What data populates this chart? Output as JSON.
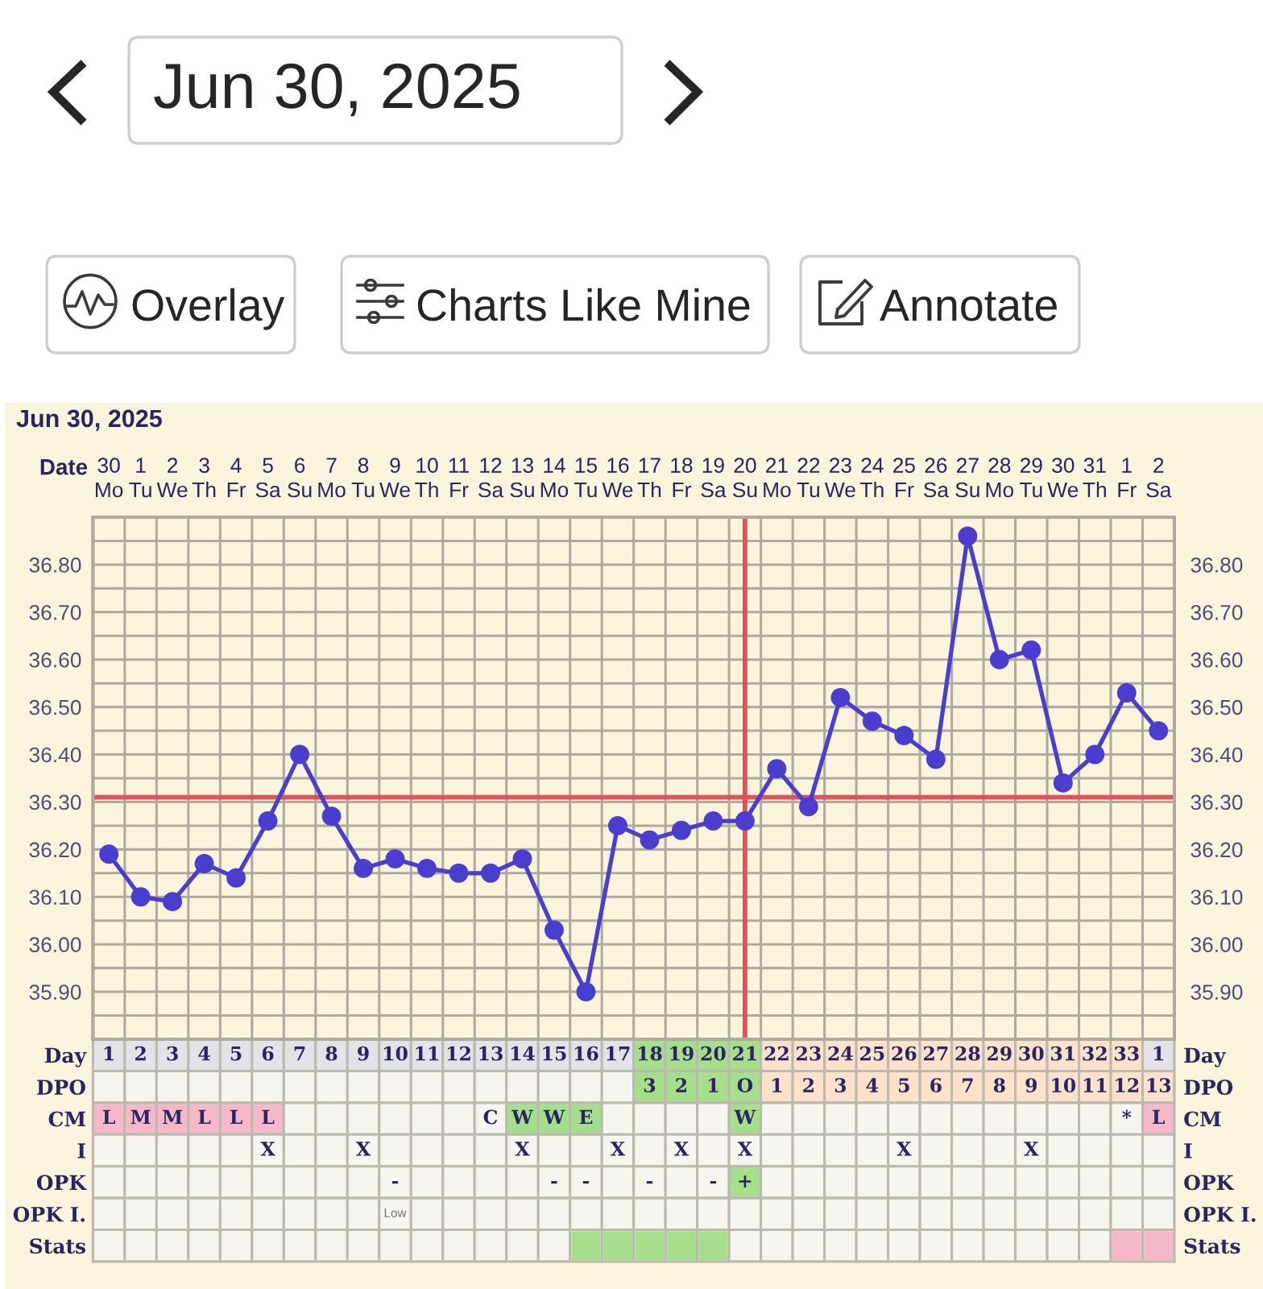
{
  "chart_data": [
    {
      "type": "line",
      "title": "Jun 30, 2025",
      "xlabel": "Date",
      "categories": [
        "30\nMo",
        "1\nTu",
        "2\nWe",
        "3\nTh",
        "4\nFr",
        "5\nSa",
        "6\nSu",
        "7\nMo",
        "8\nTu",
        "9\nWe",
        "10\nTh",
        "11\nFr",
        "12\nSa",
        "13\nSu",
        "14\nMo",
        "15\nTu",
        "16\nWe",
        "17\nTh",
        "18\nFr",
        "19\nSa",
        "20\nSu",
        "21\nMo",
        "22\nTu",
        "23\nWe",
        "24\nTh",
        "25\nFr",
        "26\nSa",
        "27\nSu",
        "28\nMo",
        "29\nTu",
        "30\nWe",
        "31\nTh",
        "1\nFr",
        "2\nSa"
      ],
      "series": [
        {
          "color": "#4a3dd0",
          "values": [
            36.19,
            36.1,
            36.09,
            36.17,
            36.14,
            36.26,
            36.4,
            36.27,
            36.16,
            36.18,
            36.16,
            36.15,
            36.15,
            36.18,
            36.03,
            35.9,
            36.25,
            36.22,
            36.24,
            36.26,
            36.26,
            36.37,
            36.29,
            36.52,
            36.47,
            36.44,
            36.39,
            36.86,
            36.6,
            36.62,
            36.34,
            36.4,
            36.53,
            36.45
          ]
        }
      ],
      "marker": "circle",
      "line_style": "solid",
      "grid": true,
      "ylim": [
        35.8,
        36.9
      ],
      "yticks": [
        {
          "value": 35.8,
          "label": null
        },
        {
          "value": 35.85,
          "label": null
        },
        {
          "value": 35.9,
          "label": "35.90"
        },
        {
          "value": 35.95,
          "label": null
        },
        {
          "value": 36.0,
          "label": "36.00"
        },
        {
          "value": 36.05,
          "label": null
        },
        {
          "value": 36.1,
          "label": "36.10"
        },
        {
          "value": 36.15,
          "label": null
        },
        {
          "value": 36.2,
          "label": "36.20"
        },
        {
          "value": 36.25,
          "label": null
        },
        {
          "value": 36.3,
          "label": "36.30"
        },
        {
          "value": 36.35,
          "label": null
        },
        {
          "value": 36.4,
          "label": "36.40"
        },
        {
          "value": 36.45,
          "label": null
        },
        {
          "value": 36.5,
          "label": "36.50"
        },
        {
          "value": 36.55,
          "label": null
        },
        {
          "value": 36.6,
          "label": "36.60"
        },
        {
          "value": 36.65,
          "label": null
        },
        {
          "value": 36.7,
          "label": "36.70"
        },
        {
          "value": 36.75,
          "label": null
        },
        {
          "value": 36.8,
          "label": "36.80"
        },
        {
          "value": 36.85,
          "label": null
        },
        {
          "value": 36.9,
          "label": null
        }
      ],
      "y2lim": [
        35.8,
        36.9
      ],
      "y2ticks": [
        {
          "value": 35.8,
          "label": null
        },
        {
          "value": 35.85,
          "label": null
        },
        {
          "value": 35.9,
          "label": "35.90"
        },
        {
          "value": 35.95,
          "label": null
        },
        {
          "value": 36.0,
          "label": "36.00"
        },
        {
          "value": 36.05,
          "label": null
        },
        {
          "value": 36.1,
          "label": "36.10"
        },
        {
          "value": 36.15,
          "label": null
        },
        {
          "value": 36.2,
          "label": "36.20"
        },
        {
          "value": 36.25,
          "label": null
        },
        {
          "value": 36.3,
          "label": "36.30"
        },
        {
          "value": 36.35,
          "label": null
        },
        {
          "value": 36.4,
          "label": "36.40"
        },
        {
          "value": 36.45,
          "label": null
        },
        {
          "value": 36.5,
          "label": "36.50"
        },
        {
          "value": 36.55,
          "label": null
        },
        {
          "value": 36.6,
          "label": "36.60"
        },
        {
          "value": 36.65,
          "label": null
        },
        {
          "value": 36.7,
          "label": "36.70"
        },
        {
          "value": 36.75,
          "label": null
        },
        {
          "value": 36.8,
          "label": "36.80"
        },
        {
          "value": 36.85,
          "label": null
        },
        {
          "value": 36.9,
          "label": null
        }
      ],
      "ref_lines": [
        {
          "axis": "y",
          "value": 36.31,
          "color": "#e0525a"
        },
        {
          "axis": "x",
          "value": "20\nSu",
          "color": "#e0525a"
        }
      ],
      "annotations": [
        "Jun 30, 2025",
        "Overlay",
        "Charts Like Mine",
        "Annotate"
      ]
    },
    {
      "type": "heatmap",
      "categories": [
        null,
        null,
        null,
        null,
        null,
        null,
        null,
        null,
        null,
        null,
        null,
        null,
        null,
        null,
        null,
        null,
        null,
        null,
        null,
        null,
        null,
        null,
        null,
        null,
        null,
        null,
        null,
        null,
        null,
        null,
        null,
        null,
        null,
        null
      ],
      "y_categories": [
        "Day",
        "DPO",
        "CM",
        "I",
        "OPK",
        "OPK I.",
        "Stats"
      ],
      "y2_categories": [
        "Day",
        "DPO",
        "CM",
        "I",
        "OPK",
        "OPK I.",
        "Stats"
      ],
      "cells": [
        [
          null,
          null,
          null,
          null,
          null,
          null,
          null,
          null,
          null,
          null,
          null,
          null,
          null,
          null,
          null,
          null,
          null,
          null,
          null,
          null,
          null,
          null,
          null,
          null,
          null,
          null,
          null,
          null,
          null,
          null,
          null,
          null,
          null,
          null
        ],
        [
          null,
          null,
          null,
          null,
          null,
          null,
          null,
          null,
          null,
          null,
          null,
          null,
          null,
          null,
          null,
          null,
          null,
          null,
          null,
          null,
          null,
          null,
          null,
          null,
          null,
          null,
          null,
          null,
          null,
          null,
          null,
          null,
          null,
          null
        ],
        [
          null,
          null,
          null,
          null,
          null,
          null,
          null,
          null,
          null,
          null,
          null,
          null,
          null,
          null,
          null,
          null,
          null,
          null,
          null,
          null,
          null,
          null,
          null,
          null,
          null,
          null,
          null,
          null,
          null,
          null,
          null,
          null,
          null,
          null
        ],
        [
          null,
          null,
          null,
          null,
          null,
          null,
          null,
          null,
          null,
          null,
          null,
          null,
          null,
          null,
          null,
          null,
          null,
          null,
          null,
          null,
          null,
          null,
          null,
          null,
          null,
          null,
          null,
          null,
          null,
          null,
          null,
          null,
          null,
          null
        ],
        [
          null,
          null,
          null,
          null,
          null,
          null,
          null,
          null,
          null,
          null,
          null,
          null,
          null,
          null,
          null,
          null,
          null,
          null,
          null,
          null,
          null,
          null,
          null,
          null,
          null,
          null,
          null,
          null,
          null,
          null,
          null,
          null,
          null,
          null
        ],
        [
          null,
          null,
          null,
          null,
          null,
          null,
          null,
          null,
          null,
          null,
          null,
          null,
          null,
          null,
          null,
          null,
          null,
          null,
          null,
          null,
          null,
          null,
          null,
          null,
          null,
          null,
          null,
          null,
          null,
          null,
          null,
          null,
          null,
          null
        ],
        [
          null,
          null,
          null,
          null,
          null,
          null,
          null,
          null,
          null,
          null,
          null,
          null,
          null,
          null,
          null,
          null,
          null,
          null,
          null,
          null,
          null,
          null,
          null,
          null,
          null,
          null,
          null,
          null,
          null,
          null,
          null,
          null,
          null,
          null
        ]
      ],
      "cell_labels": [
        [
          "1",
          "2",
          "3",
          "4",
          "5",
          "6",
          "7",
          "8",
          "9",
          "10",
          "11",
          "12",
          "13",
          "14",
          "15",
          "16",
          "17",
          "18",
          "19",
          "20",
          "21",
          "22",
          "23",
          "24",
          "25",
          "26",
          "27",
          "28",
          "29",
          "30",
          "31",
          "32",
          "33",
          "1"
        ],
        [
          null,
          null,
          null,
          null,
          null,
          null,
          null,
          null,
          null,
          null,
          null,
          null,
          null,
          null,
          null,
          null,
          null,
          "3",
          "2",
          "1",
          "O",
          "1",
          "2",
          "3",
          "4",
          "5",
          "6",
          "7",
          "8",
          "9",
          "10",
          "11",
          "12",
          "13"
        ],
        [
          "L",
          "M",
          "M",
          "L",
          "L",
          "L",
          null,
          null,
          null,
          null,
          null,
          null,
          "C",
          "W",
          "W",
          "E",
          null,
          null,
          null,
          null,
          "W",
          null,
          null,
          null,
          null,
          null,
          null,
          null,
          null,
          null,
          null,
          null,
          "*",
          "L"
        ],
        [
          null,
          null,
          null,
          null,
          null,
          "X",
          null,
          null,
          "X",
          null,
          null,
          null,
          null,
          "X",
          null,
          null,
          "X",
          null,
          "X",
          null,
          "X",
          null,
          null,
          null,
          null,
          "X",
          null,
          null,
          null,
          "X",
          null,
          null,
          null,
          null
        ],
        [
          null,
          null,
          null,
          null,
          null,
          null,
          null,
          null,
          null,
          "-",
          null,
          null,
          null,
          null,
          "-",
          "-",
          null,
          "-",
          null,
          "-",
          "+",
          null,
          null,
          null,
          null,
          null,
          null,
          null,
          null,
          null,
          null,
          null,
          null,
          null
        ],
        [
          null,
          null,
          null,
          null,
          null,
          null,
          null,
          null,
          null,
          "Low",
          null,
          null,
          null,
          null,
          null,
          null,
          null,
          null,
          null,
          null,
          null,
          null,
          null,
          null,
          null,
          null,
          null,
          null,
          null,
          null,
          null,
          null,
          null,
          null
        ],
        [
          null,
          null,
          null,
          null,
          null,
          null,
          null,
          null,
          null,
          null,
          null,
          null,
          null,
          null,
          null,
          null,
          null,
          null,
          null,
          null,
          null,
          null,
          null,
          null,
          null,
          null,
          null,
          null,
          null,
          null,
          null,
          null,
          null,
          null
        ]
      ],
      "colors": [
        [
          "#e3e3e7",
          "#e3e3e7",
          "#e3e3e7",
          "#e3e3e7",
          "#e3e3e7",
          "#e3e3e7",
          "#e3e3e7",
          "#e3e3e7",
          "#e3e3e7",
          "#e3e3e7",
          "#e3e3e7",
          "#e3e3e7",
          "#e3e3e7",
          "#e3e3e7",
          "#e3e3e7",
          "#e3e3e7",
          "#e3e3e7",
          "#a6df8b",
          "#a6df8b",
          "#a6df8b",
          "#a6df8b",
          "#fde2cb",
          "#fde2cb",
          "#fde2cb",
          "#fde2cb",
          "#fde2cb",
          "#fde2cb",
          "#fde2cb",
          "#fde2cb",
          "#fde2cb",
          "#fde2cb",
          "#fde2cb",
          "#fde2cb",
          "#e3e3e7"
        ],
        [
          null,
          null,
          null,
          null,
          null,
          null,
          null,
          null,
          null,
          null,
          null,
          null,
          null,
          null,
          null,
          null,
          null,
          "#a6df8b",
          "#a6df8b",
          "#a6df8b",
          "#a6df8b",
          "#fde2cb",
          "#fde2cb",
          "#fde2cb",
          "#fde2cb",
          "#fde2cb",
          "#fde2cb",
          "#fde2cb",
          "#fde2cb",
          "#fde2cb",
          "#fde2cb",
          "#fde2cb",
          "#fde2cb",
          "#fde2cb"
        ],
        [
          "#f5b8c9",
          "#f5b8c9",
          "#f5b8c9",
          "#f5b8c9",
          "#f5b8c9",
          "#f5b8c9",
          null,
          null,
          null,
          null,
          null,
          null,
          null,
          "#a6df8b",
          "#a6df8b",
          "#a6df8b",
          null,
          null,
          null,
          null,
          "#a6df8b",
          null,
          null,
          null,
          null,
          null,
          null,
          null,
          null,
          null,
          null,
          null,
          null,
          "#f5b8c9"
        ],
        [
          null,
          null,
          null,
          null,
          null,
          null,
          null,
          null,
          null,
          null,
          null,
          null,
          null,
          null,
          null,
          null,
          null,
          null,
          null,
          null,
          null,
          null,
          null,
          null,
          null,
          null,
          null,
          null,
          null,
          null,
          null,
          null,
          null,
          null
        ],
        [
          null,
          null,
          null,
          null,
          null,
          null,
          null,
          null,
          null,
          null,
          null,
          null,
          null,
          null,
          null,
          null,
          null,
          null,
          null,
          null,
          "#a6df8b",
          null,
          null,
          null,
          null,
          null,
          null,
          null,
          null,
          null,
          null,
          null,
          null,
          null
        ],
        [
          null,
          null,
          null,
          null,
          null,
          null,
          null,
          null,
          null,
          null,
          null,
          null,
          null,
          null,
          null,
          null,
          null,
          null,
          null,
          null,
          null,
          null,
          null,
          null,
          null,
          null,
          null,
          null,
          null,
          null,
          null,
          null,
          null,
          null
        ],
        [
          null,
          null,
          null,
          null,
          null,
          null,
          null,
          null,
          null,
          null,
          null,
          null,
          null,
          null,
          null,
          "#a6df8b",
          "#a6df8b",
          "#a6df8b",
          "#a6df8b",
          "#a6df8b",
          null,
          null,
          null,
          null,
          null,
          null,
          null,
          null,
          null,
          null,
          null,
          null,
          "#f5b8c9",
          "#f5b8c9"
        ]
      ]
    }
  ]
}
